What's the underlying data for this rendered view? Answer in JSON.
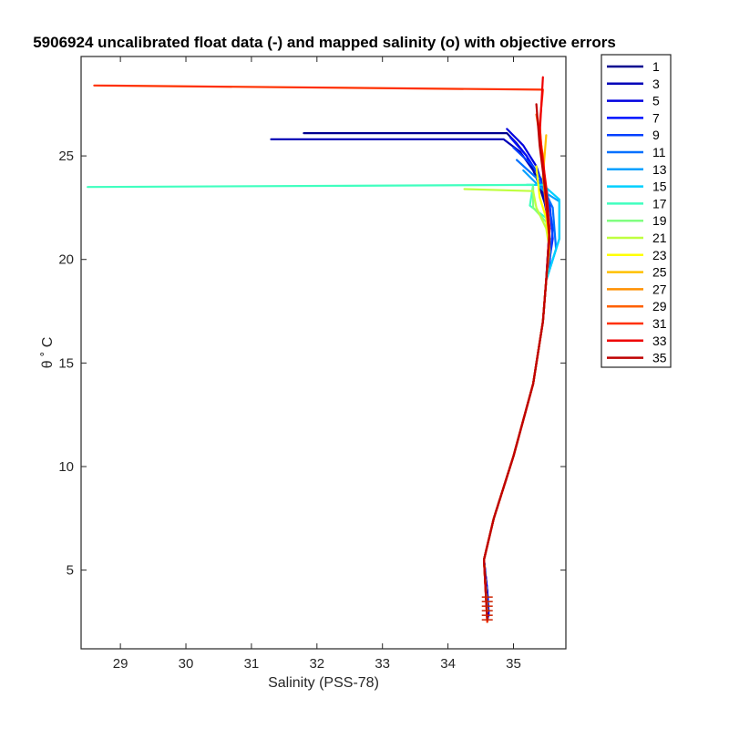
{
  "chart_data": {
    "type": "line",
    "title": "5906924 uncalibrated float data (-) and mapped salinity (o) with objective errors",
    "xlabel": "Salinity (PSS-78)",
    "ylabel": "θ ˚ C",
    "xlim": [
      28.4,
      35.8
    ],
    "ylim": [
      1.2,
      29.8
    ],
    "xticks": [
      29,
      30,
      31,
      32,
      33,
      34,
      35
    ],
    "yticks": [
      5,
      10,
      15,
      20,
      25
    ],
    "grid": false,
    "legend_position": "outside-right",
    "series": [
      {
        "name": "1",
        "color": "#00008f",
        "x": [
          31.8,
          34.9,
          35.05,
          35.2,
          35.35,
          35.5,
          35.55,
          35.5,
          35.45,
          35.3,
          35.0,
          34.7,
          34.55,
          34.6,
          34.62,
          34.6
        ],
        "y": [
          26.1,
          26.1,
          25.6,
          25.0,
          24.0,
          22.5,
          21.0,
          19.0,
          17.0,
          14.0,
          10.5,
          7.5,
          5.5,
          4.0,
          3.0,
          2.5
        ]
      },
      {
        "name": "3",
        "color": "#0000b8",
        "x": [
          31.3,
          34.85,
          35.1,
          35.3,
          35.45,
          35.55,
          35.5,
          35.45,
          35.3,
          35.0,
          34.7,
          34.55,
          34.6,
          34.62
        ],
        "y": [
          25.8,
          25.8,
          25.2,
          24.3,
          23.2,
          21.5,
          19.0,
          17.0,
          14.0,
          10.5,
          7.5,
          5.5,
          4.0,
          2.8
        ]
      },
      {
        "name": "5",
        "color": "#0000e0",
        "x": [
          34.9,
          35.15,
          35.35,
          35.5,
          35.55,
          35.5,
          35.45,
          35.3,
          35.0,
          34.7,
          34.55,
          34.6,
          34.62
        ],
        "y": [
          26.3,
          25.5,
          24.5,
          23.0,
          21.5,
          19.0,
          17.0,
          14.0,
          10.5,
          7.5,
          5.5,
          4.0,
          2.8
        ]
      },
      {
        "name": "7",
        "color": "#0010ff",
        "x": [
          34.95,
          35.2,
          35.4,
          35.55,
          35.6,
          35.5,
          35.45,
          35.3,
          35.0,
          34.7,
          34.55,
          34.6
        ],
        "y": [
          25.9,
          25.0,
          24.0,
          22.8,
          21.0,
          19.0,
          17.0,
          14.0,
          10.5,
          7.5,
          5.5,
          3.0
        ]
      },
      {
        "name": "9",
        "color": "#0040ff",
        "x": [
          35.0,
          35.3,
          35.5,
          35.6,
          35.55,
          35.5,
          35.45,
          35.3,
          35.0,
          34.7,
          34.55,
          34.6
        ],
        "y": [
          25.4,
          24.5,
          23.5,
          21.5,
          19.8,
          19.0,
          17.0,
          14.0,
          10.5,
          7.5,
          5.5,
          3.0
        ]
      },
      {
        "name": "11",
        "color": "#0070ff",
        "x": [
          35.05,
          35.4,
          35.6,
          35.65,
          35.5,
          35.45,
          35.3,
          35.0,
          34.7,
          34.55,
          34.6
        ],
        "y": [
          24.8,
          23.8,
          22.5,
          20.5,
          19.0,
          17.0,
          14.0,
          10.5,
          7.5,
          5.5,
          3.0
        ]
      },
      {
        "name": "13",
        "color": "#00a0ff",
        "x": [
          35.15,
          35.5,
          35.7,
          35.7,
          35.5,
          35.45,
          35.3,
          35.0,
          34.7,
          34.55,
          34.6
        ],
        "y": [
          24.3,
          23.2,
          22.8,
          21.0,
          19.0,
          17.0,
          14.0,
          10.5,
          7.5,
          5.5,
          3.0
        ]
      },
      {
        "name": "15",
        "color": "#00d0ff",
        "x": [
          35.2,
          35.45,
          35.7,
          35.7,
          35.5,
          35.45,
          35.3,
          35.0,
          34.7,
          34.55,
          34.6
        ],
        "y": [
          23.6,
          23.6,
          22.9,
          21.0,
          19.0,
          17.0,
          14.0,
          10.5,
          7.5,
          5.5,
          3.0
        ]
      },
      {
        "name": "17",
        "color": "#40ffbf",
        "x": [
          28.5,
          35.3,
          35.25,
          35.5,
          35.55,
          35.5,
          35.45,
          35.3,
          35.0,
          34.7,
          34.55,
          34.6
        ],
        "y": [
          23.5,
          23.6,
          22.6,
          22.0,
          21.0,
          19.0,
          17.0,
          14.0,
          10.5,
          7.5,
          5.5,
          3.0
        ]
      },
      {
        "name": "19",
        "color": "#80ff80",
        "x": [
          35.3,
          35.3,
          35.5,
          35.55,
          35.5,
          35.45,
          35.3,
          35.0,
          34.7,
          34.55,
          34.6
        ],
        "y": [
          23.5,
          22.5,
          21.8,
          20.8,
          19.0,
          17.0,
          14.0,
          10.5,
          7.5,
          5.5,
          3.0
        ]
      },
      {
        "name": "21",
        "color": "#bfff40",
        "x": [
          34.25,
          35.3,
          35.35,
          35.5,
          35.55,
          35.5,
          35.45,
          35.3,
          35.0,
          34.7,
          34.55,
          34.6
        ],
        "y": [
          23.4,
          23.3,
          22.5,
          21.5,
          20.5,
          19.0,
          17.0,
          14.0,
          10.5,
          7.5,
          5.5,
          3.0
        ]
      },
      {
        "name": "23",
        "color": "#ffff00",
        "x": [
          35.35,
          35.4,
          35.5,
          35.55,
          35.5,
          35.45,
          35.3,
          35.0,
          34.7,
          34.55,
          34.6
        ],
        "y": [
          24.5,
          23.0,
          22.0,
          20.5,
          19.0,
          17.0,
          14.0,
          10.5,
          7.5,
          5.5,
          3.0
        ]
      },
      {
        "name": "25",
        "color": "#ffc000",
        "x": [
          35.5,
          35.45,
          35.5,
          35.55,
          35.5,
          35.45,
          35.3,
          35.0,
          34.7,
          34.55,
          34.6
        ],
        "y": [
          26.0,
          24.0,
          22.5,
          20.8,
          19.0,
          17.0,
          14.0,
          10.5,
          7.5,
          5.5,
          3.0
        ]
      },
      {
        "name": "27",
        "color": "#ff9000",
        "x": [
          35.4,
          35.45,
          35.5,
          35.55,
          35.5,
          35.45,
          35.3,
          35.0,
          34.7,
          34.55,
          34.6
        ],
        "y": [
          26.5,
          24.5,
          22.5,
          21.0,
          19.0,
          17.0,
          14.0,
          10.5,
          7.5,
          5.5,
          2.5
        ]
      },
      {
        "name": "29",
        "color": "#ff6000",
        "x": [
          35.35,
          35.45,
          35.5,
          35.55,
          35.5,
          35.45,
          35.3,
          35.0,
          34.7,
          34.55,
          34.6
        ],
        "y": [
          27.0,
          25.0,
          23.0,
          21.0,
          19.0,
          17.0,
          14.0,
          10.5,
          7.5,
          5.5,
          2.6
        ]
      },
      {
        "name": "31",
        "color": "#ff3000",
        "x": [
          28.6,
          35.45,
          35.4,
          35.45,
          35.5,
          35.55,
          35.5,
          35.45,
          35.3,
          35.0,
          34.7,
          34.55,
          34.6
        ],
        "y": [
          28.4,
          28.2,
          26.5,
          24.5,
          22.5,
          21.0,
          19.0,
          17.0,
          14.0,
          10.5,
          7.5,
          5.5,
          2.5
        ]
      },
      {
        "name": "33",
        "color": "#ef0000",
        "x": [
          35.45,
          35.4,
          35.5,
          35.55,
          35.5,
          35.45,
          35.3,
          35.0,
          34.7,
          34.55,
          34.6
        ],
        "y": [
          28.8,
          26.0,
          23.5,
          21.5,
          19.0,
          17.0,
          14.0,
          10.5,
          7.5,
          5.5,
          2.6
        ]
      },
      {
        "name": "35",
        "color": "#bf0000",
        "x": [
          35.35,
          35.4,
          35.5,
          35.55,
          35.5,
          35.45,
          35.3,
          35.0,
          34.7,
          34.55,
          34.6
        ],
        "y": [
          27.5,
          25.5,
          23.0,
          21.0,
          19.0,
          17.0,
          14.0,
          10.5,
          7.5,
          5.5,
          2.6
        ]
      }
    ]
  }
}
